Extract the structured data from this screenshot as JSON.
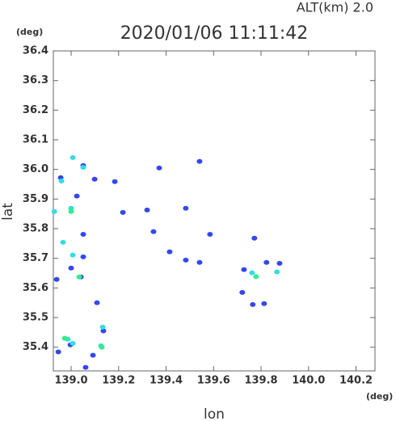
{
  "chart_data": {
    "type": "scatter",
    "title": "2020/01/06 11:11:42",
    "subtitle": "ALT(km) 2.0",
    "y_unit": "(deg)",
    "x_unit": "(deg)",
    "x_label": "lon",
    "y_label": "lat",
    "xlim": [
      138.925,
      140.28
    ],
    "ylim": [
      35.32,
      36.4
    ],
    "xticks": [
      {
        "value": 139,
        "label": "139.0"
      },
      139.2,
      139.4,
      139.6,
      139.8,
      {
        "value": 140,
        "label": "140.0"
      },
      140.2
    ],
    "yticks": [
      35.4,
      35.5,
      35.6,
      35.7,
      35.8,
      35.9,
      {
        "value": 36,
        "label": "36.0"
      },
      36.1,
      36.2,
      36.3,
      36.4
    ],
    "series": [
      {
        "color": "#3347ee",
        "x": [
          138.956,
          138.939,
          139.024,
          139.051,
          139.099,
          139.109,
          139.041,
          138.946,
          138.997,
          139.092,
          139.061,
          139.184,
          139.218,
          139.32,
          139.371,
          139.483,
          139.541,
          139.585,
          139.347,
          139.415,
          139.483,
          139.541,
          139.728,
          139.765,
          139.813,
          139.823,
          139.878,
          139.721,
          139.772,
          139.051,
          139.051,
          139.136,
          139.0
        ],
        "y": [
          35.972,
          35.629,
          35.91,
          36.013,
          35.967,
          35.55,
          35.637,
          35.384,
          35.408,
          35.373,
          35.332,
          35.959,
          35.855,
          35.863,
          36.005,
          35.869,
          36.027,
          35.781,
          35.79,
          35.722,
          35.694,
          35.686,
          35.662,
          35.544,
          35.547,
          35.686,
          35.683,
          35.585,
          35.768,
          35.781,
          35.705,
          35.455,
          35.667
        ]
      },
      {
        "color": "#33dde0",
        "x": [
          139.007,
          139.051,
          138.959,
          139.0,
          138.929,
          138.966,
          139.007,
          139.133,
          138.986,
          139.126,
          139.007,
          139.867,
          139.762
        ],
        "y": [
          36.04,
          36.007,
          35.961,
          35.869,
          35.858,
          35.754,
          35.711,
          35.468,
          35.427,
          35.405,
          35.413,
          35.654,
          35.651
        ]
      },
      {
        "color": "#33ee88",
        "x": [
          139.0,
          139.034,
          139.129,
          139.779,
          138.973
        ],
        "y": [
          35.858,
          35.637,
          35.4,
          35.638,
          35.43
        ]
      }
    ]
  }
}
